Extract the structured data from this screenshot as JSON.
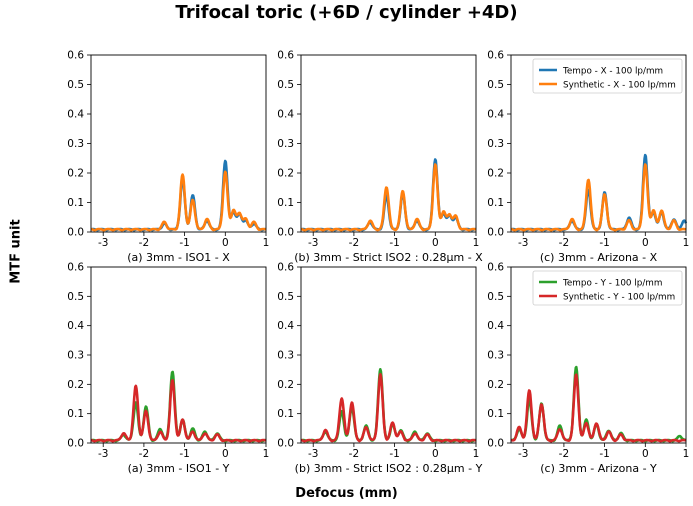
{
  "figure": {
    "title": "Trifocal toric (+6D / cylinder +4D)",
    "ylabel": "MTF unit",
    "xlabel": "Defocus (mm)"
  },
  "colors": {
    "tempo_x": "#1f77b4",
    "synthetic_x": "#ff7f0e",
    "tempo_y": "#2ca02c",
    "synthetic_y": "#d62728"
  },
  "chart_data": [
    {
      "type": "line",
      "title": "(a) 3mm - ISO1 - X",
      "xlim": [
        -3.3,
        1.0
      ],
      "ylim": [
        0,
        0.6
      ],
      "xticks": [
        "-3",
        "-2",
        "-1",
        "0",
        "1"
      ],
      "yticks": [
        "0.0",
        "0.1",
        "0.2",
        "0.3",
        "0.4",
        "0.5",
        "0.6"
      ],
      "legend": null,
      "series": [
        {
          "name": "Tempo - X - 100 lp/mm",
          "color": "#1f77b4",
          "peaks": [
            [
              -1.05,
              0.17
            ],
            [
              -0.8,
              0.115
            ],
            [
              0.0,
              0.235
            ],
            [
              0.2,
              0.06
            ],
            [
              0.35,
              0.05
            ],
            [
              0.5,
              0.03
            ],
            [
              0.7,
              0.02
            ],
            [
              -1.5,
              0.02
            ],
            [
              -0.45,
              0.03
            ]
          ]
        },
        {
          "name": "Synthetic - X - 100 lp/mm",
          "color": "#ff7f0e",
          "peaks": [
            [
              -1.05,
              0.185
            ],
            [
              -0.8,
              0.1
            ],
            [
              0.0,
              0.195
            ],
            [
              0.2,
              0.065
            ],
            [
              0.35,
              0.055
            ],
            [
              0.5,
              0.035
            ],
            [
              0.7,
              0.025
            ],
            [
              -1.5,
              0.025
            ],
            [
              -0.45,
              0.035
            ]
          ]
        }
      ]
    },
    {
      "type": "line",
      "title": "(b) 3mm - Strict ISO2 : 0.28µm - X",
      "xlim": [
        -3.3,
        1.0
      ],
      "ylim": [
        0,
        0.6
      ],
      "xticks": [
        "-3",
        "-2",
        "-1",
        "0",
        "1"
      ],
      "yticks": [
        "0.0",
        "0.1",
        "0.2",
        "0.3",
        "0.4",
        "0.5",
        "0.6"
      ],
      "legend": null,
      "series": [
        {
          "name": "Tempo - X - 100 lp/mm",
          "color": "#1f77b4",
          "peaks": [
            [
              -1.2,
              0.115
            ],
            [
              -0.8,
              0.12
            ],
            [
              0.0,
              0.24
            ],
            [
              0.2,
              0.055
            ],
            [
              0.35,
              0.045
            ],
            [
              0.5,
              0.04
            ],
            [
              -1.6,
              0.025
            ],
            [
              -0.45,
              0.03
            ]
          ]
        },
        {
          "name": "Synthetic - X - 100 lp/mm",
          "color": "#ff7f0e",
          "peaks": [
            [
              -1.2,
              0.145
            ],
            [
              -0.8,
              0.13
            ],
            [
              0.0,
              0.22
            ],
            [
              0.2,
              0.06
            ],
            [
              0.35,
              0.05
            ],
            [
              0.5,
              0.045
            ],
            [
              -1.6,
              0.03
            ],
            [
              -0.45,
              0.035
            ]
          ]
        }
      ]
    },
    {
      "type": "line",
      "title": "(c) 3mm - Arizona - X",
      "xlim": [
        -3.3,
        1.0
      ],
      "ylim": [
        0,
        0.6
      ],
      "xticks": [
        "-3",
        "-2",
        "-1",
        "0",
        "1"
      ],
      "yticks": [
        "0.0",
        "0.1",
        "0.2",
        "0.3",
        "0.4",
        "0.5",
        "0.6"
      ],
      "legend": {
        "placement": "top-right",
        "entries": [
          "Tempo - X - 100 lp/mm",
          "Synthetic - X - 100 lp/mm"
        ]
      },
      "series": [
        {
          "name": "Tempo - X - 100 lp/mm",
          "color": "#1f77b4",
          "peaks": [
            [
              -1.4,
              0.135
            ],
            [
              -1.0,
              0.125
            ],
            [
              0.0,
              0.255
            ],
            [
              0.2,
              0.06
            ],
            [
              0.4,
              0.06
            ],
            [
              0.7,
              0.035
            ],
            [
              0.95,
              0.03
            ],
            [
              -0.4,
              0.04
            ],
            [
              -1.8,
              0.03
            ]
          ]
        },
        {
          "name": "Synthetic - X - 100 lp/mm",
          "color": "#ff7f0e",
          "peaks": [
            [
              -1.4,
              0.17
            ],
            [
              -1.0,
              0.12
            ],
            [
              0.0,
              0.22
            ],
            [
              0.2,
              0.065
            ],
            [
              0.4,
              0.065
            ],
            [
              0.7,
              0.03
            ],
            [
              -0.4,
              0.03
            ],
            [
              -1.8,
              0.035
            ]
          ]
        }
      ]
    },
    {
      "type": "line",
      "title": "(a) 3mm - ISO1 - Y",
      "xlim": [
        -3.3,
        1.0
      ],
      "ylim": [
        0,
        0.6
      ],
      "xticks": [
        "-3",
        "-2",
        "-1",
        "0",
        "1"
      ],
      "yticks": [
        "0.0",
        "0.1",
        "0.2",
        "0.3",
        "0.4",
        "0.5",
        "0.6"
      ],
      "legend": null,
      "series": [
        {
          "name": "Tempo - Y - 100 lp/mm",
          "color": "#2ca02c",
          "peaks": [
            [
              -2.2,
              0.13
            ],
            [
              -1.95,
              0.115
            ],
            [
              -1.3,
              0.235
            ],
            [
              -1.05,
              0.07
            ],
            [
              -0.8,
              0.04
            ],
            [
              -0.5,
              0.03
            ],
            [
              -0.2,
              0.025
            ],
            [
              -2.5,
              0.02
            ],
            [
              -1.6,
              0.04
            ]
          ]
        },
        {
          "name": "Synthetic - Y - 100 lp/mm",
          "color": "#d62728",
          "peaks": [
            [
              -2.2,
              0.185
            ],
            [
              -1.95,
              0.1
            ],
            [
              -1.3,
              0.205
            ],
            [
              -1.05,
              0.07
            ],
            [
              -0.8,
              0.03
            ],
            [
              -0.5,
              0.025
            ],
            [
              -0.2,
              0.02
            ],
            [
              -2.5,
              0.025
            ],
            [
              -1.6,
              0.03
            ]
          ]
        }
      ]
    },
    {
      "type": "line",
      "title": "(b) 3mm - Strict ISO2 : 0.28µm - Y",
      "xlim": [
        -3.3,
        1.0
      ],
      "ylim": [
        0,
        0.6
      ],
      "xticks": [
        "-3",
        "-2",
        "-1",
        "0",
        "1"
      ],
      "yticks": [
        "0.0",
        "0.1",
        "0.2",
        "0.3",
        "0.4",
        "0.5",
        "0.6"
      ],
      "legend": null,
      "series": [
        {
          "name": "Tempo - Y - 100 lp/mm",
          "color": "#2ca02c",
          "peaks": [
            [
              -2.3,
              0.1
            ],
            [
              -2.05,
              0.115
            ],
            [
              -1.35,
              0.245
            ],
            [
              -1.05,
              0.055
            ],
            [
              -0.85,
              0.035
            ],
            [
              -0.5,
              0.03
            ],
            [
              -0.2,
              0.025
            ],
            [
              -2.7,
              0.03
            ],
            [
              -1.7,
              0.05
            ]
          ]
        },
        {
          "name": "Synthetic - Y - 100 lp/mm",
          "color": "#d62728",
          "peaks": [
            [
              -2.3,
              0.145
            ],
            [
              -2.05,
              0.13
            ],
            [
              -1.35,
              0.225
            ],
            [
              -1.05,
              0.06
            ],
            [
              -0.85,
              0.03
            ],
            [
              -0.5,
              0.025
            ],
            [
              -0.2,
              0.02
            ],
            [
              -2.7,
              0.035
            ],
            [
              -1.7,
              0.045
            ]
          ]
        }
      ]
    },
    {
      "type": "line",
      "title": "(c) 3mm - Arizona - Y",
      "xlim": [
        -3.3,
        1.0
      ],
      "ylim": [
        0,
        0.6
      ],
      "xticks": [
        "-3",
        "-2",
        "-1",
        "0",
        "1"
      ],
      "yticks": [
        "0.0",
        "0.1",
        "0.2",
        "0.3",
        "0.4",
        "0.5",
        "0.6"
      ],
      "legend": {
        "placement": "top-right",
        "entries": [
          "Tempo - Y - 100 lp/mm",
          "Synthetic - Y - 100 lp/mm"
        ]
      },
      "series": [
        {
          "name": "Tempo - Y - 100 lp/mm",
          "color": "#2ca02c",
          "peaks": [
            [
              -2.85,
              0.14
            ],
            [
              -2.55,
              0.125
            ],
            [
              -1.7,
              0.25
            ],
            [
              -1.45,
              0.07
            ],
            [
              -1.2,
              0.055
            ],
            [
              -0.9,
              0.035
            ],
            [
              -0.6,
              0.025
            ],
            [
              -3.1,
              0.04
            ],
            [
              -2.1,
              0.05
            ],
            [
              0.85,
              0.015
            ]
          ]
        },
        {
          "name": "Synthetic - Y - 100 lp/mm",
          "color": "#d62728",
          "peaks": [
            [
              -2.85,
              0.17
            ],
            [
              -2.55,
              0.125
            ],
            [
              -1.7,
              0.225
            ],
            [
              -1.45,
              0.06
            ],
            [
              -1.2,
              0.06
            ],
            [
              -0.9,
              0.03
            ],
            [
              -0.6,
              0.02
            ],
            [
              -3.1,
              0.045
            ],
            [
              -2.1,
              0.04
            ]
          ]
        }
      ]
    }
  ]
}
